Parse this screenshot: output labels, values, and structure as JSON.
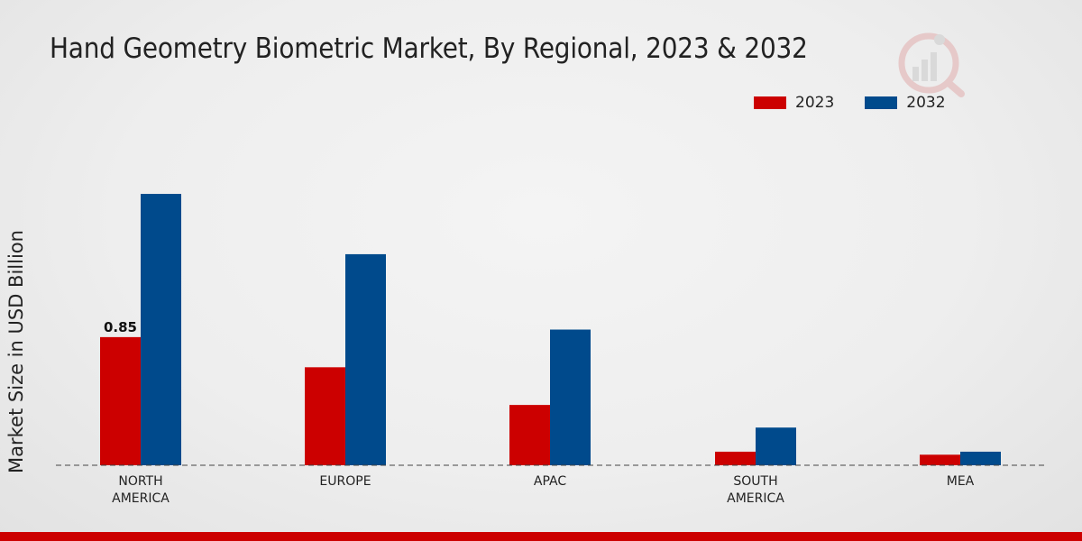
{
  "chart_data": {
    "type": "bar",
    "title": "Hand Geometry Biometric Market, By Regional, 2023 & 2032",
    "xlabel": "",
    "ylabel": "Market Size in USD Billion",
    "categories": [
      [
        "NORTH",
        "AMERICA"
      ],
      [
        "EUROPE"
      ],
      [
        "APAC"
      ],
      [
        "SOUTH",
        "AMERICA"
      ],
      [
        "MEA"
      ]
    ],
    "series": [
      {
        "name": "2023",
        "color": "#cc0000",
        "values": [
          0.85,
          0.65,
          0.4,
          0.09,
          0.07
        ]
      },
      {
        "name": "2032",
        "color": "#004a8c",
        "values": [
          1.8,
          1.4,
          0.9,
          0.25,
          0.09
        ]
      }
    ],
    "data_labels": [
      {
        "series": 0,
        "index": 0,
        "text": "0.85"
      }
    ],
    "ylim": [
      0,
      2.5
    ],
    "grid": false,
    "legend_position": "top-right"
  },
  "colors": {
    "accent": "#cc0000",
    "secondary": "#004a8c"
  },
  "logo_icon": "market-research-logo-icon"
}
